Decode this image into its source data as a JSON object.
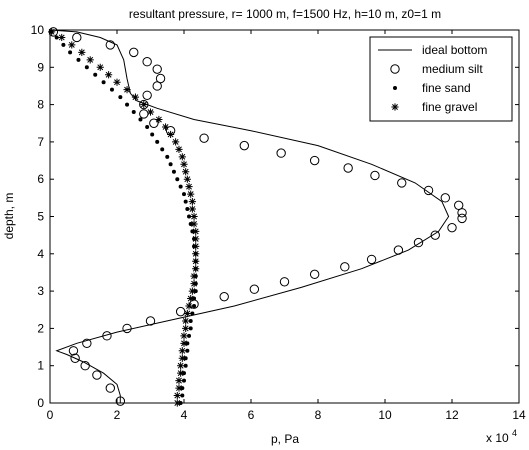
{
  "chart_data": {
    "type": "line",
    "title": "resultant pressure, r= 1000 m, f=1500 Hz, h=10 m, z0=1 m",
    "xlabel": "p, Pa",
    "ylabel": "depth, m",
    "xlim": [
      0,
      14
    ],
    "ylim": [
      0,
      10
    ],
    "x_ticks": [
      "0",
      "2",
      "4",
      "6",
      "8",
      "10",
      "12",
      "14"
    ],
    "y_ticks": [
      "0",
      "1",
      "2",
      "3",
      "4",
      "5",
      "6",
      "7",
      "8",
      "9",
      "10"
    ],
    "x_multiplier": "x 10",
    "x_multiplier_exp": "4",
    "legend_position": "top-right",
    "grid": false,
    "series": [
      {
        "name": "ideal bottom",
        "marker": "line",
        "points": [
          [
            2.1,
            0
          ],
          [
            2.1,
            0.2
          ],
          [
            2.0,
            0.5
          ],
          [
            1.6,
            0.8
          ],
          [
            1.0,
            1.1
          ],
          [
            0.5,
            1.3
          ],
          [
            0.2,
            1.4
          ],
          [
            0.8,
            1.6
          ],
          [
            2.0,
            1.9
          ],
          [
            3.5,
            2.2
          ],
          [
            5.5,
            2.6
          ],
          [
            7.5,
            3.1
          ],
          [
            9.3,
            3.6
          ],
          [
            10.7,
            4.1
          ],
          [
            11.6,
            4.6
          ],
          [
            11.9,
            5.0
          ],
          [
            11.7,
            5.4
          ],
          [
            10.9,
            5.9
          ],
          [
            9.6,
            6.4
          ],
          [
            8.0,
            6.9
          ],
          [
            6.0,
            7.3
          ],
          [
            4.3,
            7.6
          ],
          [
            3.2,
            7.9
          ],
          [
            2.6,
            8.1
          ],
          [
            2.4,
            8.3
          ],
          [
            2.3,
            8.7
          ],
          [
            2.2,
            9.2
          ],
          [
            2.0,
            9.6
          ],
          [
            1.5,
            9.8
          ],
          [
            0.8,
            9.95
          ],
          [
            0.0,
            10.0
          ]
        ]
      },
      {
        "name": "medium silt",
        "marker": "circle",
        "points": [
          [
            2.1,
            0.05
          ],
          [
            1.8,
            0.4
          ],
          [
            1.4,
            0.75
          ],
          [
            1.05,
            1.0
          ],
          [
            0.75,
            1.2
          ],
          [
            0.7,
            1.4
          ],
          [
            1.1,
            1.6
          ],
          [
            1.7,
            1.8
          ],
          [
            2.3,
            2.0
          ],
          [
            3.0,
            2.2
          ],
          [
            3.9,
            2.45
          ],
          [
            4.3,
            2.65
          ],
          [
            5.2,
            2.85
          ],
          [
            6.1,
            3.05
          ],
          [
            7.0,
            3.25
          ],
          [
            7.9,
            3.45
          ],
          [
            8.8,
            3.65
          ],
          [
            9.6,
            3.85
          ],
          [
            10.4,
            4.1
          ],
          [
            11.0,
            4.3
          ],
          [
            11.5,
            4.5
          ],
          [
            12.0,
            4.7
          ],
          [
            12.3,
            4.95
          ],
          [
            12.3,
            5.1
          ],
          [
            12.2,
            5.3
          ],
          [
            11.8,
            5.5
          ],
          [
            11.3,
            5.7
          ],
          [
            10.5,
            5.9
          ],
          [
            9.7,
            6.1
          ],
          [
            8.9,
            6.3
          ],
          [
            7.9,
            6.5
          ],
          [
            6.9,
            6.7
          ],
          [
            5.8,
            6.9
          ],
          [
            4.6,
            7.1
          ],
          [
            3.6,
            7.3
          ],
          [
            3.1,
            7.5
          ],
          [
            2.8,
            7.75
          ],
          [
            2.8,
            8.0
          ],
          [
            2.9,
            8.25
          ],
          [
            3.2,
            8.5
          ],
          [
            3.3,
            8.7
          ],
          [
            3.2,
            8.95
          ],
          [
            2.9,
            9.15
          ],
          [
            2.5,
            9.4
          ],
          [
            1.8,
            9.6
          ],
          [
            0.8,
            9.8
          ],
          [
            0.1,
            9.95
          ]
        ]
      },
      {
        "name": "fine sand",
        "marker": "dot",
        "points": [
          [
            3.9,
            0
          ],
          [
            3.95,
            0.2
          ],
          [
            3.95,
            0.4
          ],
          [
            4.0,
            0.6
          ],
          [
            4.0,
            0.8
          ],
          [
            4.05,
            1.0
          ],
          [
            4.05,
            1.2
          ],
          [
            4.1,
            1.4
          ],
          [
            4.1,
            1.6
          ],
          [
            4.15,
            1.8
          ],
          [
            4.2,
            2.0
          ],
          [
            4.2,
            2.2
          ],
          [
            4.25,
            2.4
          ],
          [
            4.3,
            2.6
          ],
          [
            4.3,
            2.8
          ],
          [
            4.35,
            3.0
          ],
          [
            4.35,
            3.2
          ],
          [
            4.35,
            3.4
          ],
          [
            4.35,
            3.6
          ],
          [
            4.35,
            3.8
          ],
          [
            4.35,
            4.0
          ],
          [
            4.3,
            4.2
          ],
          [
            4.3,
            4.4
          ],
          [
            4.25,
            4.6
          ],
          [
            4.2,
            4.8
          ],
          [
            4.15,
            5.0
          ],
          [
            4.1,
            5.2
          ],
          [
            4.05,
            5.4
          ],
          [
            4.0,
            5.6
          ],
          [
            3.9,
            5.8
          ],
          [
            3.8,
            6.0
          ],
          [
            3.7,
            6.2
          ],
          [
            3.6,
            6.4
          ],
          [
            3.5,
            6.6
          ],
          [
            3.35,
            6.8
          ],
          [
            3.2,
            7.0
          ],
          [
            3.05,
            7.2
          ],
          [
            2.9,
            7.4
          ],
          [
            2.7,
            7.6
          ],
          [
            2.5,
            7.8
          ],
          [
            2.3,
            8.0
          ],
          [
            2.1,
            8.2
          ],
          [
            1.85,
            8.4
          ],
          [
            1.6,
            8.6
          ],
          [
            1.35,
            8.8
          ],
          [
            1.1,
            9.0
          ],
          [
            0.85,
            9.2
          ],
          [
            0.6,
            9.4
          ],
          [
            0.4,
            9.6
          ],
          [
            0.2,
            9.8
          ],
          [
            0.05,
            9.95
          ]
        ]
      },
      {
        "name": "fine gravel",
        "marker": "star",
        "points": [
          [
            3.8,
            0
          ],
          [
            3.8,
            0.2
          ],
          [
            3.85,
            0.4
          ],
          [
            3.85,
            0.6
          ],
          [
            3.9,
            0.8
          ],
          [
            3.9,
            1.0
          ],
          [
            3.95,
            1.2
          ],
          [
            3.95,
            1.4
          ],
          [
            4.0,
            1.6
          ],
          [
            4.0,
            1.8
          ],
          [
            4.05,
            2.0
          ],
          [
            4.05,
            2.2
          ],
          [
            4.1,
            2.4
          ],
          [
            4.15,
            2.6
          ],
          [
            4.2,
            2.8
          ],
          [
            4.25,
            3.0
          ],
          [
            4.3,
            3.2
          ],
          [
            4.3,
            3.4
          ],
          [
            4.35,
            3.6
          ],
          [
            4.35,
            3.8
          ],
          [
            4.35,
            4.0
          ],
          [
            4.35,
            4.2
          ],
          [
            4.35,
            4.4
          ],
          [
            4.35,
            4.6
          ],
          [
            4.3,
            4.8
          ],
          [
            4.3,
            5.0
          ],
          [
            4.25,
            5.2
          ],
          [
            4.25,
            5.4
          ],
          [
            4.2,
            5.6
          ],
          [
            4.15,
            5.8
          ],
          [
            4.1,
            6.0
          ],
          [
            4.05,
            6.2
          ],
          [
            4.0,
            6.4
          ],
          [
            3.95,
            6.6
          ],
          [
            3.85,
            6.8
          ],
          [
            3.75,
            7.0
          ],
          [
            3.6,
            7.2
          ],
          [
            3.45,
            7.4
          ],
          [
            3.25,
            7.6
          ],
          [
            3.0,
            7.8
          ],
          [
            2.8,
            8.0
          ],
          [
            2.55,
            8.2
          ],
          [
            2.3,
            8.4
          ],
          [
            2.0,
            8.6
          ],
          [
            1.75,
            8.8
          ],
          [
            1.5,
            9.0
          ],
          [
            1.2,
            9.2
          ],
          [
            0.95,
            9.4
          ],
          [
            0.65,
            9.6
          ],
          [
            0.35,
            9.8
          ],
          [
            0.05,
            9.95
          ]
        ]
      }
    ]
  }
}
